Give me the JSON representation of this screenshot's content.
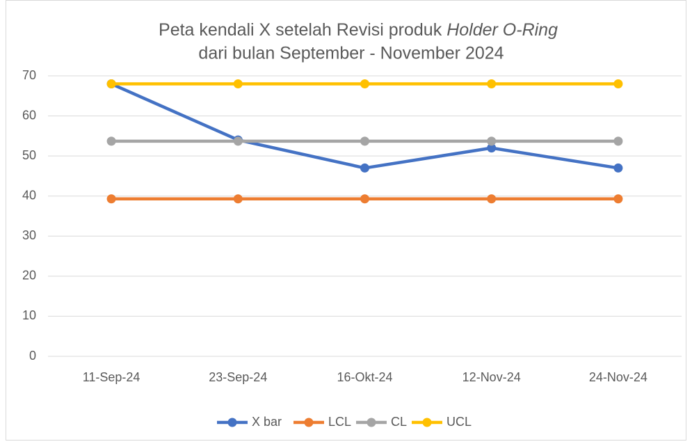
{
  "chart_data": {
    "type": "line",
    "title": [
      "Peta kendali X setelah Revisi produk",
      "Holder O-Ring",
      "dari bulan September - November 2024"
    ],
    "categories": [
      "11-Sep-24",
      "23-Sep-24",
      "16-Okt-24",
      "12-Nov-24",
      "24-Nov-24"
    ],
    "series": [
      {
        "name": "X bar",
        "color": "#4472c4",
        "values": [
          68,
          54,
          47,
          52,
          47
        ]
      },
      {
        "name": "LCL",
        "color": "#ed7d31",
        "values": [
          39.3,
          39.3,
          39.3,
          39.3,
          39.3
        ]
      },
      {
        "name": "CL",
        "color": "#a5a5a5",
        "values": [
          53.7,
          53.7,
          53.7,
          53.7,
          53.7
        ]
      },
      {
        "name": "UCL",
        "color": "#ffc000",
        "values": [
          68,
          68,
          68,
          68,
          68
        ]
      }
    ],
    "ylim": [
      0,
      70
    ],
    "yticks": [
      0,
      10,
      20,
      30,
      40,
      50,
      60,
      70
    ],
    "grid": true,
    "legend": "bottom"
  }
}
